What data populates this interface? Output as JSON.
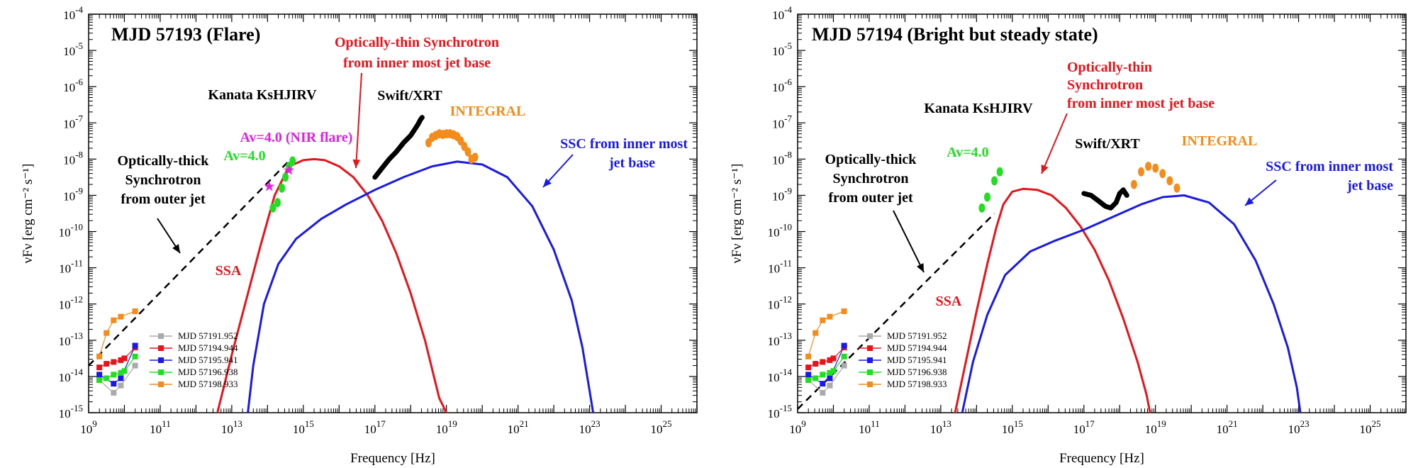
{
  "charts": [
    {
      "id": "p1",
      "title": "MJD 57193 (Flare)",
      "xlabel": "Frequency [Hz]",
      "ylabel": "νFν [erg cm⁻² s⁻¹]",
      "annotations": [
        {
          "text": "Optically-thin Synchrotron",
          "color": "#e8141b"
        },
        {
          "text": "from inner most jet base",
          "color": "#e8141b"
        },
        {
          "text": "Kanata KsHJIRV",
          "color": "#000000"
        },
        {
          "text": "Swift/XRT",
          "color": "#000000"
        },
        {
          "text": "INTEGRAL",
          "color": "#f28c1c"
        },
        {
          "text": "Av=4.0 (NIR flare)",
          "color": "#e020e0"
        },
        {
          "text": "Av=4.0",
          "color": "#22dd22"
        },
        {
          "text": "SSC from inner most",
          "color": "#1a1ae6"
        },
        {
          "text": "jet base",
          "color": "#1a1ae6"
        },
        {
          "text": "Optically-thick",
          "color": "#000000"
        },
        {
          "text": "Synchrotron",
          "color": "#000000"
        },
        {
          "text": "from outer jet",
          "color": "#000000"
        },
        {
          "text": "SSA",
          "color": "#e8141b"
        }
      ]
    },
    {
      "id": "p2",
      "title": "MJD 57194 (Bright but steady state)",
      "xlabel": "Frequency [Hz]",
      "ylabel": "νFν [erg cm⁻² s⁻¹]",
      "annotations": [
        {
          "text": "Optically-thin",
          "color": "#e8141b"
        },
        {
          "text": "Synchrotron",
          "color": "#e8141b"
        },
        {
          "text": "from inner most jet base",
          "color": "#e8141b"
        },
        {
          "text": "Kanata KsHJIRV",
          "color": "#000000"
        },
        {
          "text": "Swift/XRT",
          "color": "#000000"
        },
        {
          "text": "INTEGRAL",
          "color": "#f28c1c"
        },
        {
          "text": "Av=4.0",
          "color": "#22dd22"
        },
        {
          "text": "SSC from inner most",
          "color": "#1a1ae6"
        },
        {
          "text": "jet base",
          "color": "#1a1ae6"
        },
        {
          "text": "Optically-thick",
          "color": "#000000"
        },
        {
          "text": "Synchrotron",
          "color": "#000000"
        },
        {
          "text": "from outer jet",
          "color": "#000000"
        },
        {
          "text": "SSA",
          "color": "#e8141b"
        }
      ]
    }
  ],
  "chart_data": [
    {
      "type": "line",
      "title": "MJD 57193 (Flare)",
      "xscale": "log",
      "yscale": "log",
      "xlim_log10": [
        9,
        26
      ],
      "ylim_log10": [
        -15,
        -4
      ],
      "xticks_log10": [
        9,
        11,
        13,
        15,
        17,
        19,
        21,
        23,
        25
      ],
      "yticks_log10": [
        -15,
        -14,
        -13,
        -12,
        -11,
        -10,
        -9,
        -8,
        -7,
        -6,
        -5,
        -4
      ],
      "xlabel": "Frequency [Hz]",
      "ylabel": "νFν [erg cm⁻² s⁻¹]",
      "series": [
        {
          "name": "Optically-thin Synchrotron (SSA)",
          "color": "#e8141b",
          "style": "solid",
          "x_log10": [
            12.6,
            13.0,
            13.4,
            13.8,
            14.2,
            14.6,
            15.0,
            15.3,
            15.6,
            16.0,
            16.4,
            16.8,
            17.2,
            17.6,
            18.0,
            18.4,
            18.8,
            19.0
          ],
          "y_log10": [
            -15.0,
            -13.4,
            -11.9,
            -10.4,
            -9.0,
            -8.2,
            -8.03,
            -8.0,
            -8.03,
            -8.2,
            -8.5,
            -9.0,
            -9.7,
            -10.6,
            -11.7,
            -13.0,
            -14.6,
            -15.0
          ]
        },
        {
          "name": "SSC from inner most jet base",
          "color": "#1a1ae6",
          "style": "solid",
          "x_log10": [
            13.45,
            13.6,
            13.9,
            14.3,
            14.8,
            15.5,
            16.2,
            17.0,
            17.8,
            18.6,
            19.3,
            20.0,
            20.7,
            21.4,
            22.0,
            22.5,
            22.8,
            23.0,
            23.1
          ],
          "y_log10": [
            -15.0,
            -13.7,
            -12.0,
            -10.9,
            -10.2,
            -9.65,
            -9.25,
            -8.85,
            -8.5,
            -8.2,
            -8.07,
            -8.15,
            -8.5,
            -9.3,
            -10.5,
            -11.9,
            -13.2,
            -14.4,
            -15.0
          ]
        },
        {
          "name": "Optically-thick Synchrotron from outer jet",
          "color": "#000000",
          "style": "dashed",
          "x_log10": [
            9.0,
            14.6
          ],
          "y_log10": [
            -13.7,
            -8.05
          ]
        },
        {
          "name": "Swift/XRT",
          "color": "#000000",
          "style": "thick",
          "x_log10": [
            17.0,
            17.2,
            17.4,
            17.6,
            17.8,
            18.0,
            18.1,
            18.2,
            18.28,
            18.32
          ],
          "y_log10": [
            -8.5,
            -8.25,
            -8.0,
            -7.8,
            -7.55,
            -7.35,
            -7.2,
            -7.05,
            -6.9,
            -6.85
          ]
        },
        {
          "name": "INTEGRAL",
          "color": "#f28c1c",
          "style": "markers",
          "x_log10": [
            18.5,
            18.6,
            18.7,
            18.8,
            18.9,
            19.0,
            19.1,
            19.2,
            19.3,
            19.4,
            19.5,
            19.6,
            19.7,
            19.8
          ],
          "y_log10": [
            -7.55,
            -7.4,
            -7.35,
            -7.3,
            -7.32,
            -7.3,
            -7.3,
            -7.33,
            -7.38,
            -7.5,
            -7.65,
            -7.8,
            -8.0,
            -7.95
          ]
        },
        {
          "name": "Kanata Av=4.0",
          "color": "#22dd22",
          "style": "markers",
          "x_log10": [
            14.15,
            14.28,
            14.4,
            14.5,
            14.6,
            14.7
          ],
          "y_log10": [
            -9.35,
            -9.2,
            -8.8,
            -8.5,
            -8.2,
            -8.05
          ]
        },
        {
          "name": "Av=4.0 (NIR flare)",
          "color": "#e020e0",
          "style": "star",
          "x_log10": [
            14.05,
            14.6
          ],
          "y_log10": [
            -8.75,
            -8.3
          ]
        },
        {
          "name": "MJD 57191.952",
          "color": "#aaaaaa",
          "style": "line-marker",
          "x_log10": [
            9.3,
            9.7,
            9.9,
            10.3
          ],
          "y_log10": [
            -14.1,
            -14.45,
            -14.25,
            -13.7
          ]
        },
        {
          "name": "MJD 57194.944",
          "color": "#e8141b",
          "style": "line-marker",
          "x_log10": [
            9.3,
            9.5,
            9.7,
            9.9,
            10.0,
            10.3
          ],
          "y_log10": [
            -13.75,
            -13.65,
            -13.6,
            -13.55,
            -13.5,
            -13.2
          ]
        },
        {
          "name": "MJD 57195.941",
          "color": "#1a1ae6",
          "style": "line-marker",
          "x_log10": [
            9.3,
            9.7,
            9.9,
            10.3
          ],
          "y_log10": [
            -13.95,
            -14.2,
            -14.05,
            -13.15
          ]
        },
        {
          "name": "MJD 57196.938",
          "color": "#22dd22",
          "style": "line-marker",
          "x_log10": [
            9.3,
            9.5,
            9.7,
            9.9,
            10.0,
            10.3
          ],
          "y_log10": [
            -14.1,
            -14.05,
            -13.95,
            -13.9,
            -13.85,
            -13.45
          ]
        },
        {
          "name": "MJD 57198.933",
          "color": "#f28c1c",
          "style": "line-marker",
          "x_log10": [
            9.3,
            9.5,
            9.7,
            9.9,
            10.3
          ],
          "y_log10": [
            -13.45,
            -12.8,
            -12.45,
            -12.35,
            -12.2
          ]
        }
      ],
      "legend": {
        "placement": "bottom-left",
        "entries": [
          "MJD 57191.952",
          "MJD 57194.944",
          "MJD 57195.941",
          "MJD 57196.938",
          "MJD 57198.933"
        ]
      }
    },
    {
      "type": "line",
      "title": "MJD 57194 (Bright but steady state)",
      "xscale": "log",
      "yscale": "log",
      "xlim_log10": [
        9,
        26
      ],
      "ylim_log10": [
        -15,
        -4
      ],
      "xticks_log10": [
        9,
        11,
        13,
        15,
        17,
        19,
        21,
        23,
        25
      ],
      "yticks_log10": [
        -15,
        -14,
        -13,
        -12,
        -11,
        -10,
        -9,
        -8,
        -7,
        -6,
        -5,
        -4
      ],
      "xlabel": "Frequency [Hz]",
      "ylabel": "νFν [erg cm⁻² s⁻¹]",
      "series": [
        {
          "name": "Optically-thin Synchrotron (SSA)",
          "color": "#e8141b",
          "style": "solid",
          "x_log10": [
            13.4,
            13.7,
            14.0,
            14.3,
            14.55,
            14.75,
            15.0,
            15.3,
            15.7,
            16.1,
            16.5,
            16.9,
            17.3,
            17.7,
            18.1,
            18.5,
            18.75,
            18.85
          ],
          "y_log10": [
            -15.0,
            -13.6,
            -12.2,
            -10.9,
            -9.9,
            -9.25,
            -8.9,
            -8.82,
            -8.85,
            -9.0,
            -9.35,
            -9.85,
            -10.5,
            -11.35,
            -12.4,
            -13.6,
            -14.5,
            -15.0
          ]
        },
        {
          "name": "SSC from inner most jet base",
          "color": "#1a1ae6",
          "style": "solid",
          "x_log10": [
            13.6,
            13.9,
            14.3,
            14.8,
            15.5,
            16.2,
            17.0,
            17.8,
            18.6,
            19.2,
            19.8,
            20.5,
            21.2,
            21.8,
            22.3,
            22.7,
            22.95,
            23.05
          ],
          "y_log10": [
            -15.0,
            -13.6,
            -12.3,
            -11.2,
            -10.55,
            -10.25,
            -9.95,
            -9.6,
            -9.25,
            -9.05,
            -9.0,
            -9.2,
            -9.8,
            -10.8,
            -12.0,
            -13.2,
            -14.3,
            -15.0
          ]
        },
        {
          "name": "Optically-thick Synchrotron from outer jet",
          "color": "#000000",
          "style": "dashed",
          "x_log10": [
            9.0,
            14.5
          ],
          "y_log10": [
            -14.9,
            -9.5
          ]
        },
        {
          "name": "Swift/XRT",
          "color": "#000000",
          "style": "thick",
          "x_log10": [
            17.0,
            17.2,
            17.4,
            17.6,
            17.75,
            17.9,
            18.0,
            18.1,
            18.2
          ],
          "y_log10": [
            -8.95,
            -9.0,
            -9.15,
            -9.3,
            -9.35,
            -9.2,
            -8.95,
            -8.85,
            -9.0
          ]
        },
        {
          "name": "INTEGRAL",
          "color": "#f28c1c",
          "style": "markers",
          "x_log10": [
            18.4,
            18.6,
            18.8,
            19.0,
            19.2,
            19.4,
            19.6
          ],
          "y_log10": [
            -8.7,
            -8.35,
            -8.2,
            -8.25,
            -8.4,
            -8.6,
            -8.8
          ]
        },
        {
          "name": "Kanata Av=4.0",
          "color": "#22dd22",
          "style": "markers",
          "x_log10": [
            14.15,
            14.3,
            14.5,
            14.65
          ],
          "y_log10": [
            -9.35,
            -9.05,
            -8.6,
            -8.35
          ]
        },
        {
          "name": "MJD 57191.952",
          "color": "#aaaaaa",
          "style": "line-marker",
          "x_log10": [
            9.3,
            9.7,
            9.9,
            10.3
          ],
          "y_log10": [
            -14.1,
            -14.45,
            -14.25,
            -13.7
          ]
        },
        {
          "name": "MJD 57194.944",
          "color": "#e8141b",
          "style": "line-marker",
          "x_log10": [
            9.3,
            9.5,
            9.7,
            9.9,
            10.0,
            10.3
          ],
          "y_log10": [
            -13.75,
            -13.65,
            -13.6,
            -13.55,
            -13.5,
            -13.2
          ]
        },
        {
          "name": "MJD 57195.941",
          "color": "#1a1ae6",
          "style": "line-marker",
          "x_log10": [
            9.3,
            9.7,
            9.9,
            10.3
          ],
          "y_log10": [
            -13.95,
            -14.2,
            -14.05,
            -13.15
          ]
        },
        {
          "name": "MJD 57196.938",
          "color": "#22dd22",
          "style": "line-marker",
          "x_log10": [
            9.3,
            9.5,
            9.7,
            9.9,
            10.0,
            10.3
          ],
          "y_log10": [
            -14.1,
            -14.05,
            -13.95,
            -13.9,
            -13.85,
            -13.45
          ]
        },
        {
          "name": "MJD 57198.933",
          "color": "#f28c1c",
          "style": "line-marker",
          "x_log10": [
            9.3,
            9.5,
            9.7,
            9.9,
            10.3
          ],
          "y_log10": [
            -13.45,
            -12.8,
            -12.45,
            -12.35,
            -12.2
          ]
        }
      ],
      "legend": {
        "placement": "bottom-left",
        "entries": [
          "MJD 57191.952",
          "MJD 57194.944",
          "MJD 57195.941",
          "MJD 57196.938",
          "MJD 57198.933"
        ]
      }
    }
  ]
}
